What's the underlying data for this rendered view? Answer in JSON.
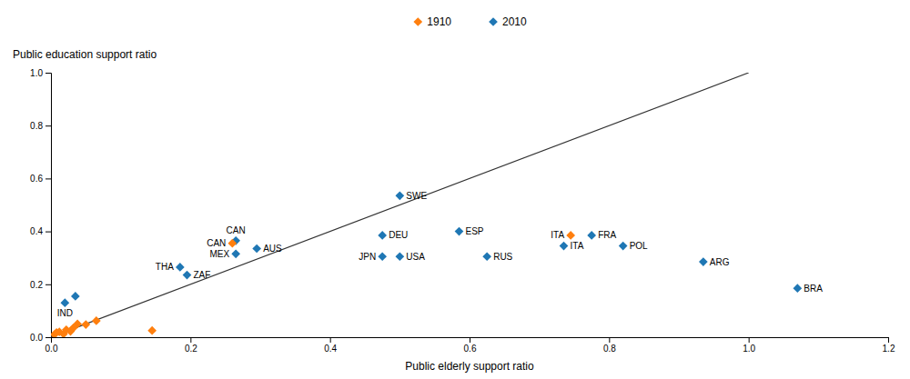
{
  "chart_data": {
    "type": "scatter",
    "xlabel": "Public elderly support ratio",
    "ylabel": "Public education support ratio",
    "xlim": [
      0,
      1.2
    ],
    "ylim": [
      0,
      1.0
    ],
    "xticks": [
      {
        "value": 0.0,
        "label": "0.0"
      },
      0.2,
      0.4,
      0.6,
      0.8,
      {
        "value": 1.0,
        "label": "1.0"
      },
      1.2
    ],
    "yticks": [
      {
        "value": 0.0,
        "label": "0.0"
      },
      0.2,
      0.4,
      0.6,
      0.8,
      {
        "value": 1.0,
        "label": "1.0"
      }
    ],
    "grid": false,
    "legend": "top",
    "series": [
      {
        "name": "2010",
        "marker": "diamond",
        "x": [
          0.02,
          0.035,
          0.185,
          0.195,
          0.265,
          0.295,
          0.265,
          0.475,
          0.5,
          0.475,
          0.5,
          0.585,
          0.625,
          0.735,
          0.775,
          0.82,
          0.935,
          1.07
        ],
        "values": [
          0.13,
          0.155,
          0.265,
          0.235,
          0.315,
          0.335,
          0.365,
          0.305,
          0.305,
          0.385,
          0.535,
          0.4,
          0.305,
          0.345,
          0.385,
          0.345,
          0.285,
          0.185
        ],
        "labels": [
          "IND",
          null,
          "THA",
          "ZAF",
          "MEX",
          "AUS",
          "CAN",
          "JPN",
          "USA",
          "DEU",
          "SWE",
          "ESP",
          "RUS",
          "ITA",
          "FRA",
          "POL",
          "ARG",
          "BRA"
        ]
      },
      {
        "name": "1910",
        "marker": "diamond",
        "x": [
          0.005,
          0.008,
          0.012,
          0.018,
          0.022,
          0.028,
          0.032,
          0.038,
          0.05,
          0.065,
          0.145,
          0.26,
          0.745
        ],
        "values": [
          0.01,
          0.018,
          0.02,
          0.012,
          0.028,
          0.022,
          0.035,
          0.05,
          0.048,
          0.062,
          0.025,
          0.355,
          0.385
        ],
        "labels": [
          null,
          null,
          null,
          null,
          null,
          null,
          null,
          null,
          null,
          null,
          null,
          "CAN",
          "ITA"
        ]
      },
      {
        "type": "line",
        "x": [
          0,
          1.0
        ],
        "values": [
          0,
          1.0
        ]
      }
    ]
  }
}
